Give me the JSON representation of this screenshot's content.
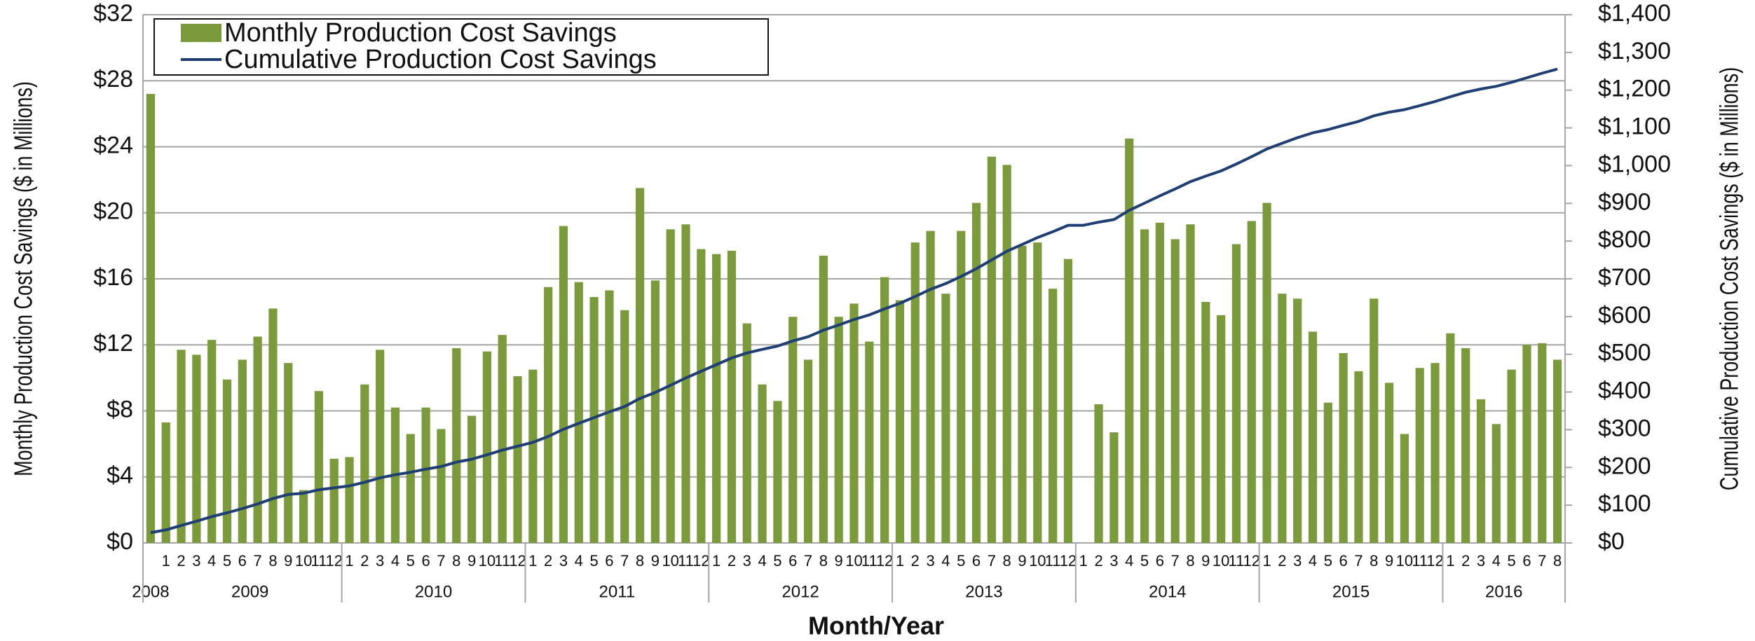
{
  "chart_data": {
    "type": "bar-line",
    "x_label": "Month/Year",
    "y_label": "Monthly Production Cost Savings ($ in Millions)",
    "y2_label": "Cumulative Production Cost Savings ($ in Millions)",
    "categories": [
      null,
      "1",
      "2",
      "3",
      "4",
      "5",
      "6",
      "7",
      "8",
      "9",
      "10",
      "11",
      "12",
      "1",
      "2",
      "3",
      "4",
      "5",
      "6",
      "7",
      "8",
      "9",
      "10",
      "11",
      "12",
      "1",
      "2",
      "3",
      "4",
      "5",
      "6",
      "7",
      "8",
      "9",
      "10",
      "11",
      "12",
      "1",
      "2",
      "3",
      "4",
      "5",
      "6",
      "7",
      "8",
      "9",
      "10",
      "11",
      "12",
      "1",
      "2",
      "3",
      "4",
      "5",
      "6",
      "7",
      "8",
      "9",
      "10",
      "11",
      "12",
      "1",
      "2",
      "3",
      "4",
      "5",
      "6",
      "7",
      "8",
      "9",
      "10",
      "11",
      "12",
      "1",
      "2",
      "3",
      "4",
      "5",
      "6",
      "7",
      "8",
      "9",
      "10",
      "11",
      "12",
      "1",
      "2",
      "3",
      "4",
      "5",
      "6",
      "7",
      "8"
    ],
    "years": [
      {
        "label": "2008",
        "months": 1
      },
      {
        "label": "2009",
        "months": 12
      },
      {
        "label": "2010",
        "months": 12
      },
      {
        "label": "2011",
        "months": 12
      },
      {
        "label": "2012",
        "months": 12
      },
      {
        "label": "2013",
        "months": 12
      },
      {
        "label": "2014",
        "months": 12
      },
      {
        "label": "2015",
        "months": 12
      },
      {
        "label": "2016",
        "months": 8
      }
    ],
    "series": [
      {
        "name": "Monthly Production Cost Savings",
        "color": "#7b9a3c",
        "kind": "bar",
        "axis": "y",
        "values": [
          27.2,
          7.3,
          11.7,
          11.4,
          12.3,
          9.9,
          11.1,
          12.5,
          14.2,
          10.9,
          3.2,
          9.2,
          5.1,
          5.2,
          9.6,
          11.7,
          8.2,
          6.6,
          8.2,
          6.9,
          11.8,
          7.7,
          11.6,
          12.6,
          10.1,
          10.5,
          15.5,
          19.2,
          15.8,
          14.9,
          15.3,
          14.1,
          21.5,
          15.9,
          19.0,
          19.3,
          17.8,
          17.5,
          17.7,
          13.3,
          9.6,
          8.6,
          13.7,
          11.1,
          17.4,
          13.7,
          14.5,
          12.2,
          16.1,
          14.7,
          18.2,
          18.9,
          15.1,
          18.9,
          20.6,
          23.4,
          22.9,
          18.0,
          18.2,
          15.4,
          17.2,
          null,
          8.4,
          6.7,
          24.5,
          19.0,
          19.4,
          18.4,
          19.3,
          14.6,
          13.8,
          18.1,
          19.5,
          20.6,
          15.1,
          14.8,
          12.8,
          8.5,
          11.5,
          10.4,
          14.8,
          9.7,
          6.6,
          10.6,
          10.9,
          12.7,
          11.8,
          8.7,
          7.2,
          10.5,
          12.0,
          12.1,
          11.1
        ]
      },
      {
        "name": "Cumulative Production Cost Savings",
        "color": "#1f3f74",
        "kind": "line",
        "axis": "y2",
        "values": [
          27.2,
          34.5,
          46.2,
          57.6,
          69.9,
          79.8,
          90.9,
          103.4,
          117.6,
          128.5,
          131.7,
          140.9,
          146.0,
          151.2,
          160.8,
          172.5,
          180.7,
          187.3,
          195.5,
          202.4,
          214.2,
          221.9,
          233.5,
          246.1,
          256.2,
          266.7,
          282.2,
          301.4,
          317.2,
          332.1,
          347.4,
          361.5,
          383.0,
          398.9,
          417.9,
          437.2,
          455.0,
          472.5,
          490.2,
          503.5,
          513.1,
          521.7,
          535.4,
          546.5,
          563.9,
          577.6,
          592.1,
          604.3,
          620.4,
          635.1,
          653.3,
          672.2,
          687.3,
          706.2,
          726.8,
          750.2,
          773.1,
          791.1,
          809.3,
          824.7,
          841.9,
          841.9,
          850.3,
          857.0,
          881.5,
          900.5,
          919.9,
          938.3,
          957.6,
          972.2,
          986.0,
          1004.1,
          1023.6,
          1044.2,
          1059.3,
          1074.1,
          1086.9,
          1095.4,
          1106.9,
          1117.3,
          1132.1,
          1141.8,
          1148.4,
          1159.0,
          1169.9,
          1182.6,
          1194.4,
          1203.1,
          1210.3,
          1220.8,
          1232.8,
          1244.9,
          1256.0
        ]
      }
    ],
    "ylim": [
      0,
      32
    ],
    "yticks": [
      {
        "value": 0,
        "label": "$0"
      },
      {
        "value": 4,
        "label": "$4"
      },
      {
        "value": 8,
        "label": "$8"
      },
      {
        "value": 12,
        "label": "$12"
      },
      {
        "value": 16,
        "label": "$16"
      },
      {
        "value": 20,
        "label": "$20"
      },
      {
        "value": 24,
        "label": "$24"
      },
      {
        "value": 28,
        "label": "$28"
      },
      {
        "value": 32,
        "label": "$32"
      }
    ],
    "y2lim": [
      0,
      1400
    ],
    "y2ticks": [
      {
        "value": 0,
        "label": "$0"
      },
      {
        "value": 100,
        "label": "$100"
      },
      {
        "value": 200,
        "label": "$200"
      },
      {
        "value": 300,
        "label": "$300"
      },
      {
        "value": 400,
        "label": "$400"
      },
      {
        "value": 500,
        "label": "$500"
      },
      {
        "value": 600,
        "label": "$600"
      },
      {
        "value": 700,
        "label": "$700"
      },
      {
        "value": 800,
        "label": "$800"
      },
      {
        "value": 900,
        "label": "$900"
      },
      {
        "value": 1000,
        "label": "$1,000"
      },
      {
        "value": 1100,
        "label": "$1,100"
      },
      {
        "value": 1200,
        "label": "$1,200"
      },
      {
        "value": 1300,
        "label": "$1,300"
      },
      {
        "value": 1400,
        "label": "$1,400"
      }
    ],
    "grid": true,
    "legend": "top-left"
  }
}
